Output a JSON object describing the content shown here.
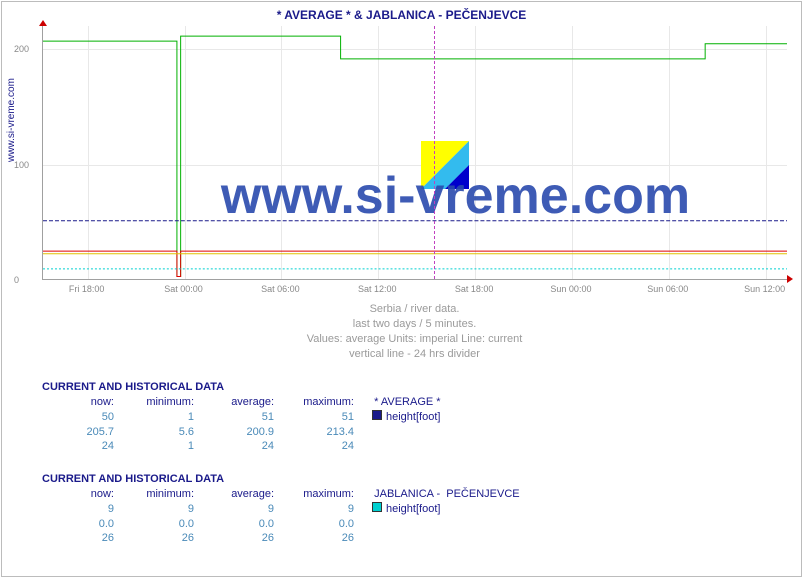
{
  "title": "* AVERAGE * &  JABLANICA -  PEČENJEVCE",
  "ylabel": "www.si-vreme.com",
  "watermark_text": "www.si-vreme.com",
  "logo": {
    "colors": [
      "#ffff00",
      "#33bbee",
      "#0000cc"
    ]
  },
  "chart": {
    "type": "line",
    "background_color": "#ffffff",
    "grid_color": "#e8e8e8",
    "axis_color": "#a0a0a0",
    "arrow_color": "#c00000",
    "divider_color": "#c040c0",
    "ylim": [
      0,
      220
    ],
    "yticks": [
      0,
      100,
      200
    ],
    "xticks": [
      "Fri 18:00",
      "Sat 00:00",
      "Sat 06:00",
      "Sat 12:00",
      "Sat 18:00",
      "Sun 00:00",
      "Sun 06:00",
      "Sun 12:00"
    ],
    "xtick_positions_pct": [
      6,
      19,
      32,
      45,
      58,
      71,
      84,
      97
    ],
    "divider_positions_pct": [
      52.5
    ],
    "series": [
      {
        "name": "avg-green",
        "color": "#00b000",
        "width": 1,
        "points_pct": [
          [
            0,
            6
          ],
          [
            18,
            6
          ],
          [
            18,
            99
          ],
          [
            18.5,
            99
          ],
          [
            18.5,
            4
          ],
          [
            40,
            4
          ],
          [
            40,
            13
          ],
          [
            89,
            13
          ],
          [
            89,
            7
          ],
          [
            100,
            7
          ]
        ]
      },
      {
        "name": "avg-blue-dash",
        "color": "#1a1a8a",
        "width": 1,
        "dash": "4 2",
        "points_pct": [
          [
            0,
            77
          ],
          [
            100,
            77
          ]
        ]
      },
      {
        "name": "avg-red",
        "color": "#e00000",
        "width": 1,
        "points_pct": [
          [
            0,
            89
          ],
          [
            18,
            89
          ],
          [
            18,
            99
          ],
          [
            18.5,
            99
          ],
          [
            18.5,
            89
          ],
          [
            100,
            89
          ]
        ]
      },
      {
        "name": "avg-yellow",
        "color": "#e0c000",
        "width": 1,
        "points_pct": [
          [
            0,
            90
          ],
          [
            100,
            90
          ]
        ]
      },
      {
        "name": "jab-cyan",
        "color": "#00d0d0",
        "width": 1,
        "dash": "2 2",
        "points_pct": [
          [
            0,
            96
          ],
          [
            100,
            96
          ]
        ]
      }
    ]
  },
  "caption_lines": [
    "Serbia / river data.",
    "last two days / 5 minutes.",
    "Values: average  Units: imperial  Line: current",
    "vertical line - 24 hrs  divider"
  ],
  "data_blocks": [
    {
      "title": "CURRENT AND HISTORICAL DATA",
      "headers": [
        "now:",
        "minimum:",
        "average:",
        "maximum:"
      ],
      "station": "  * AVERAGE *",
      "legend_swatch": "#1a1a8a",
      "legend_text": "height[foot]",
      "rows": [
        [
          "50",
          "1",
          "51",
          "51"
        ],
        [
          "205.7",
          "5.6",
          "200.9",
          "213.4"
        ],
        [
          "24",
          "1",
          "24",
          "24"
        ]
      ]
    },
    {
      "title": "CURRENT AND HISTORICAL DATA",
      "headers": [
        "now:",
        "minimum:",
        "average:",
        "maximum:"
      ],
      "station": "  JABLANICA -  PEČENJEVCE",
      "legend_swatch": "#00d0d0",
      "legend_text": "height[foot]",
      "rows": [
        [
          "9",
          "9",
          "9",
          "9"
        ],
        [
          "0.0",
          "0.0",
          "0.0",
          "0.0"
        ],
        [
          "26",
          "26",
          "26",
          "26"
        ]
      ]
    }
  ]
}
